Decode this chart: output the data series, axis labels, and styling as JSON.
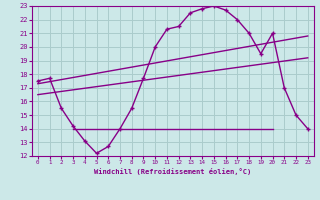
{
  "xlabel": "Windchill (Refroidissement éolien,°C)",
  "xlim": [
    -0.5,
    23.5
  ],
  "ylim": [
    12,
    23
  ],
  "xticks": [
    0,
    1,
    2,
    3,
    4,
    5,
    6,
    7,
    8,
    9,
    10,
    11,
    12,
    13,
    14,
    15,
    16,
    17,
    18,
    19,
    20,
    21,
    22,
    23
  ],
  "yticks": [
    12,
    13,
    14,
    15,
    16,
    17,
    18,
    19,
    20,
    21,
    22,
    23
  ],
  "bg_color": "#cce8e8",
  "grid_color": "#aacccc",
  "line_color": "#880088",
  "curve_x": [
    0,
    1,
    2,
    3,
    4,
    5,
    6,
    7,
    8,
    9,
    10,
    11,
    12,
    13,
    14,
    15,
    16,
    17,
    18,
    19,
    20,
    21,
    22,
    23
  ],
  "curve_y": [
    17.5,
    17.7,
    15.5,
    14.2,
    13.1,
    12.2,
    12.7,
    14.0,
    15.5,
    17.7,
    20.0,
    21.3,
    21.5,
    22.5,
    22.8,
    23.0,
    22.7,
    22.0,
    21.0,
    19.5,
    21.0,
    17.0,
    15.0,
    14.0
  ],
  "line1_x": [
    0,
    23
  ],
  "line1_y": [
    17.3,
    20.8
  ],
  "line2_x": [
    0,
    23
  ],
  "line2_y": [
    16.5,
    19.2
  ],
  "hline_x": [
    3,
    20
  ],
  "hline_y": [
    14.0,
    14.0
  ],
  "marker": "+"
}
